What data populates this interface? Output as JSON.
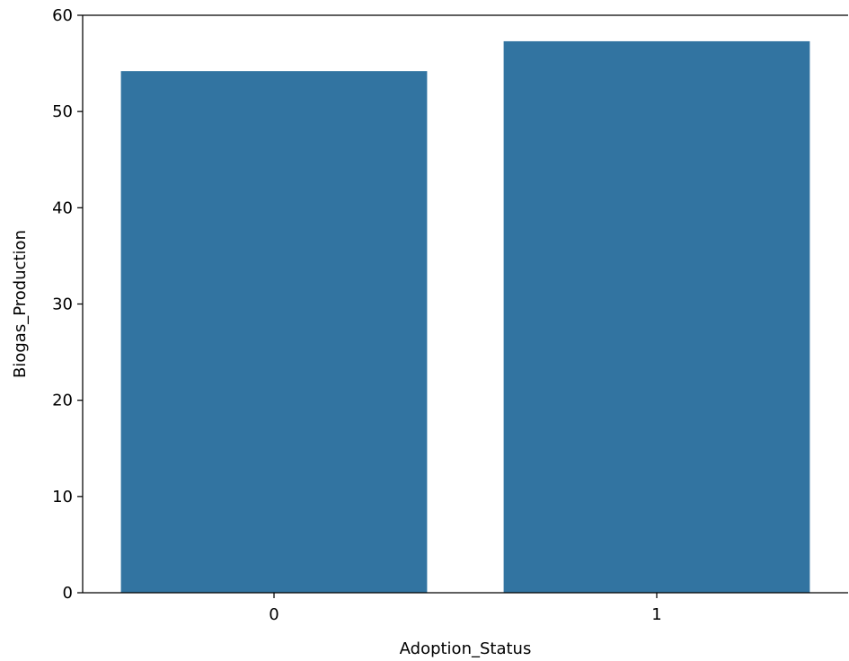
{
  "chart_data": {
    "type": "bar",
    "title": "",
    "xlabel": "Adoption_Status",
    "ylabel": "Biogas_Production",
    "categories": [
      "0",
      "1"
    ],
    "values": [
      54.2,
      57.3
    ],
    "ylim": [
      0,
      60
    ],
    "yticks": [
      0,
      10,
      20,
      30,
      40,
      50,
      60
    ],
    "ytick_labels": [
      "0",
      "10",
      "20",
      "30",
      "40",
      "50",
      "60"
    ],
    "grid": false,
    "legend": "none",
    "colors": {
      "bar": "#3274a1",
      "axis": "#000000",
      "background": "#ffffff"
    }
  }
}
